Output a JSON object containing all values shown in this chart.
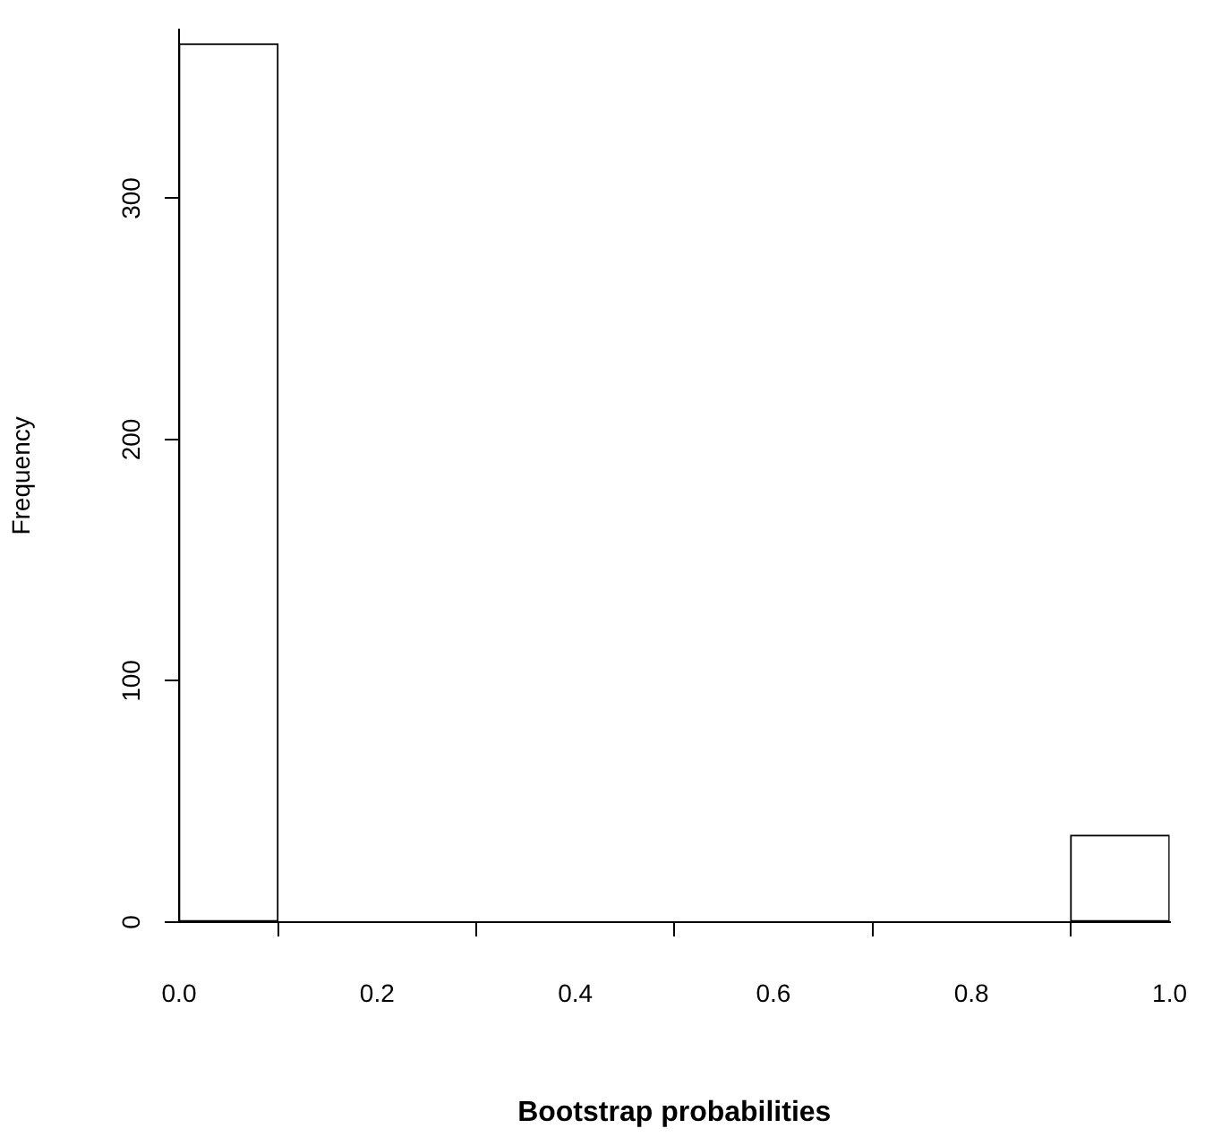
{
  "chart_data": {
    "type": "histogram",
    "xlabel": "Bootstrap probabilities",
    "ylabel": "Frequency",
    "bins": [
      0,
      0.1,
      0.2,
      0.3,
      0.4,
      0.5,
      0.6,
      0.7,
      0.8,
      0.9,
      1.0
    ],
    "values": [
      364,
      0,
      0,
      0,
      0,
      0,
      0,
      0,
      0,
      36
    ],
    "color": "#ffffff",
    "xlim": [
      0,
      1
    ],
    "xticks": [
      {
        "value": 0,
        "label": "0.0"
      },
      {
        "value": 0.2,
        "label": "0.2"
      },
      {
        "value": 0.4,
        "label": "0.4"
      },
      {
        "value": 0.6,
        "label": "0.6"
      },
      {
        "value": 0.8,
        "label": "0.8"
      },
      {
        "value": 1,
        "label": "1.0"
      }
    ],
    "ylim": [
      0,
      370
    ],
    "yticks": [
      0,
      100,
      200,
      300
    ],
    "grid": false,
    "legend": false
  }
}
